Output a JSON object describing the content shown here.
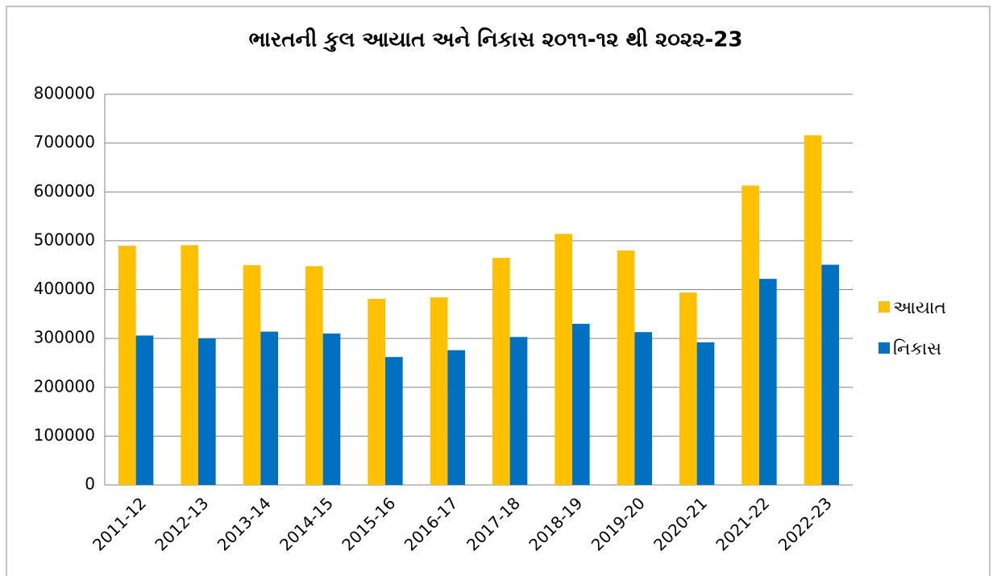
{
  "chart_data": {
    "type": "bar",
    "title": "ભારતની કુલ આયાત અને નિકાસ ૨૦૧૧-૧૨ થી ૨૦૨૨-23",
    "categories": [
      "2011-12",
      "2012-13",
      "2013-14",
      "2014-15",
      "2015-16",
      "2016-17",
      "2017-18",
      "2018-19",
      "2019-20",
      "2020-21",
      "2021-22",
      "2022-23"
    ],
    "series": [
      {
        "name": "આયાત",
        "color": "#FFC000",
        "values": [
          490000,
          491000,
          450000,
          448000,
          381000,
          384000,
          465000,
          514000,
          480000,
          394000,
          613000,
          716000
        ]
      },
      {
        "name": "નિકાસ",
        "color": "#0070C0",
        "values": [
          306000,
          300000,
          314000,
          310000,
          262000,
          276000,
          303000,
          330000,
          313000,
          292000,
          422000,
          451000
        ]
      }
    ],
    "ylim": [
      0,
      800000
    ],
    "yticks": [
      0,
      100000,
      200000,
      300000,
      400000,
      500000,
      600000,
      700000,
      800000
    ],
    "grid": true,
    "legend": "right"
  }
}
